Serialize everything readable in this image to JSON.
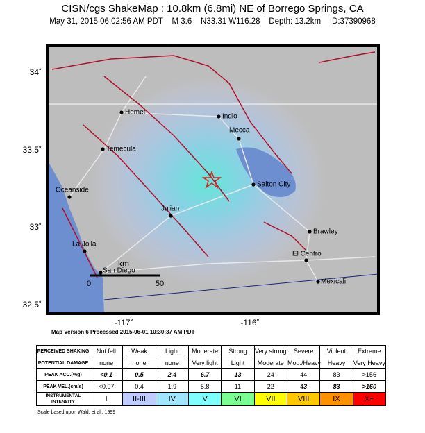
{
  "header": {
    "title": "CISN/cgs ShakeMap : 10.8km (6.8mi) NE of Borrego Springs, CA",
    "subtitle": "May 31, 2015 06:02:56 AM PDT    M 3.6    N33.31 W116.28    Depth: 13.2km    ID:37390968"
  },
  "map": {
    "lat_labels": [
      "34˚",
      "33.5˚",
      "33˚",
      "32.5˚"
    ],
    "lon_labels": [
      "-117˚",
      "-116˚"
    ],
    "cities": [
      "Hemet",
      "Indio",
      "Mecca",
      "Temecula",
      "Salton City",
      "Oceanside",
      "Julian",
      "Brawley",
      "La Jolla",
      "El Centro",
      "San Diego",
      "Mexicali"
    ],
    "scale": {
      "unit": "km",
      "ticks": [
        "0",
        "50"
      ]
    }
  },
  "version": "Map Version 6 Processed 2015-06-01 10:30:37 AM PDT",
  "table": {
    "rows": [
      [
        "PERCEIVED SHAKING",
        "Not felt",
        "Weak",
        "Light",
        "Moderate",
        "Strong",
        "Very strong",
        "Severe",
        "Violent",
        "Extreme"
      ],
      [
        "POTENTIAL DAMAGE",
        "none",
        "none",
        "none",
        "Very light",
        "Light",
        "Moderate",
        "Mod./Heavy",
        "Heavy",
        "Very Heavy"
      ],
      [
        "PEAK ACC.(%g)",
        "<0.1",
        "0.5",
        "2.4",
        "6.7",
        "13",
        "24",
        "44",
        "83",
        ">156"
      ],
      [
        "PEAK VEL.(cm/s)",
        "<0.07",
        "0.4",
        "1.9",
        "5.8",
        "11",
        "22",
        "43",
        "83",
        ">160"
      ],
      [
        "INSTRUMENTAL INTENSITY",
        "I",
        "II-III",
        "IV",
        "V",
        "VI",
        "VII",
        "VIII",
        "IX",
        "X+"
      ]
    ]
  },
  "footnote": "Scale based upon Wald, et al.; 1999"
}
